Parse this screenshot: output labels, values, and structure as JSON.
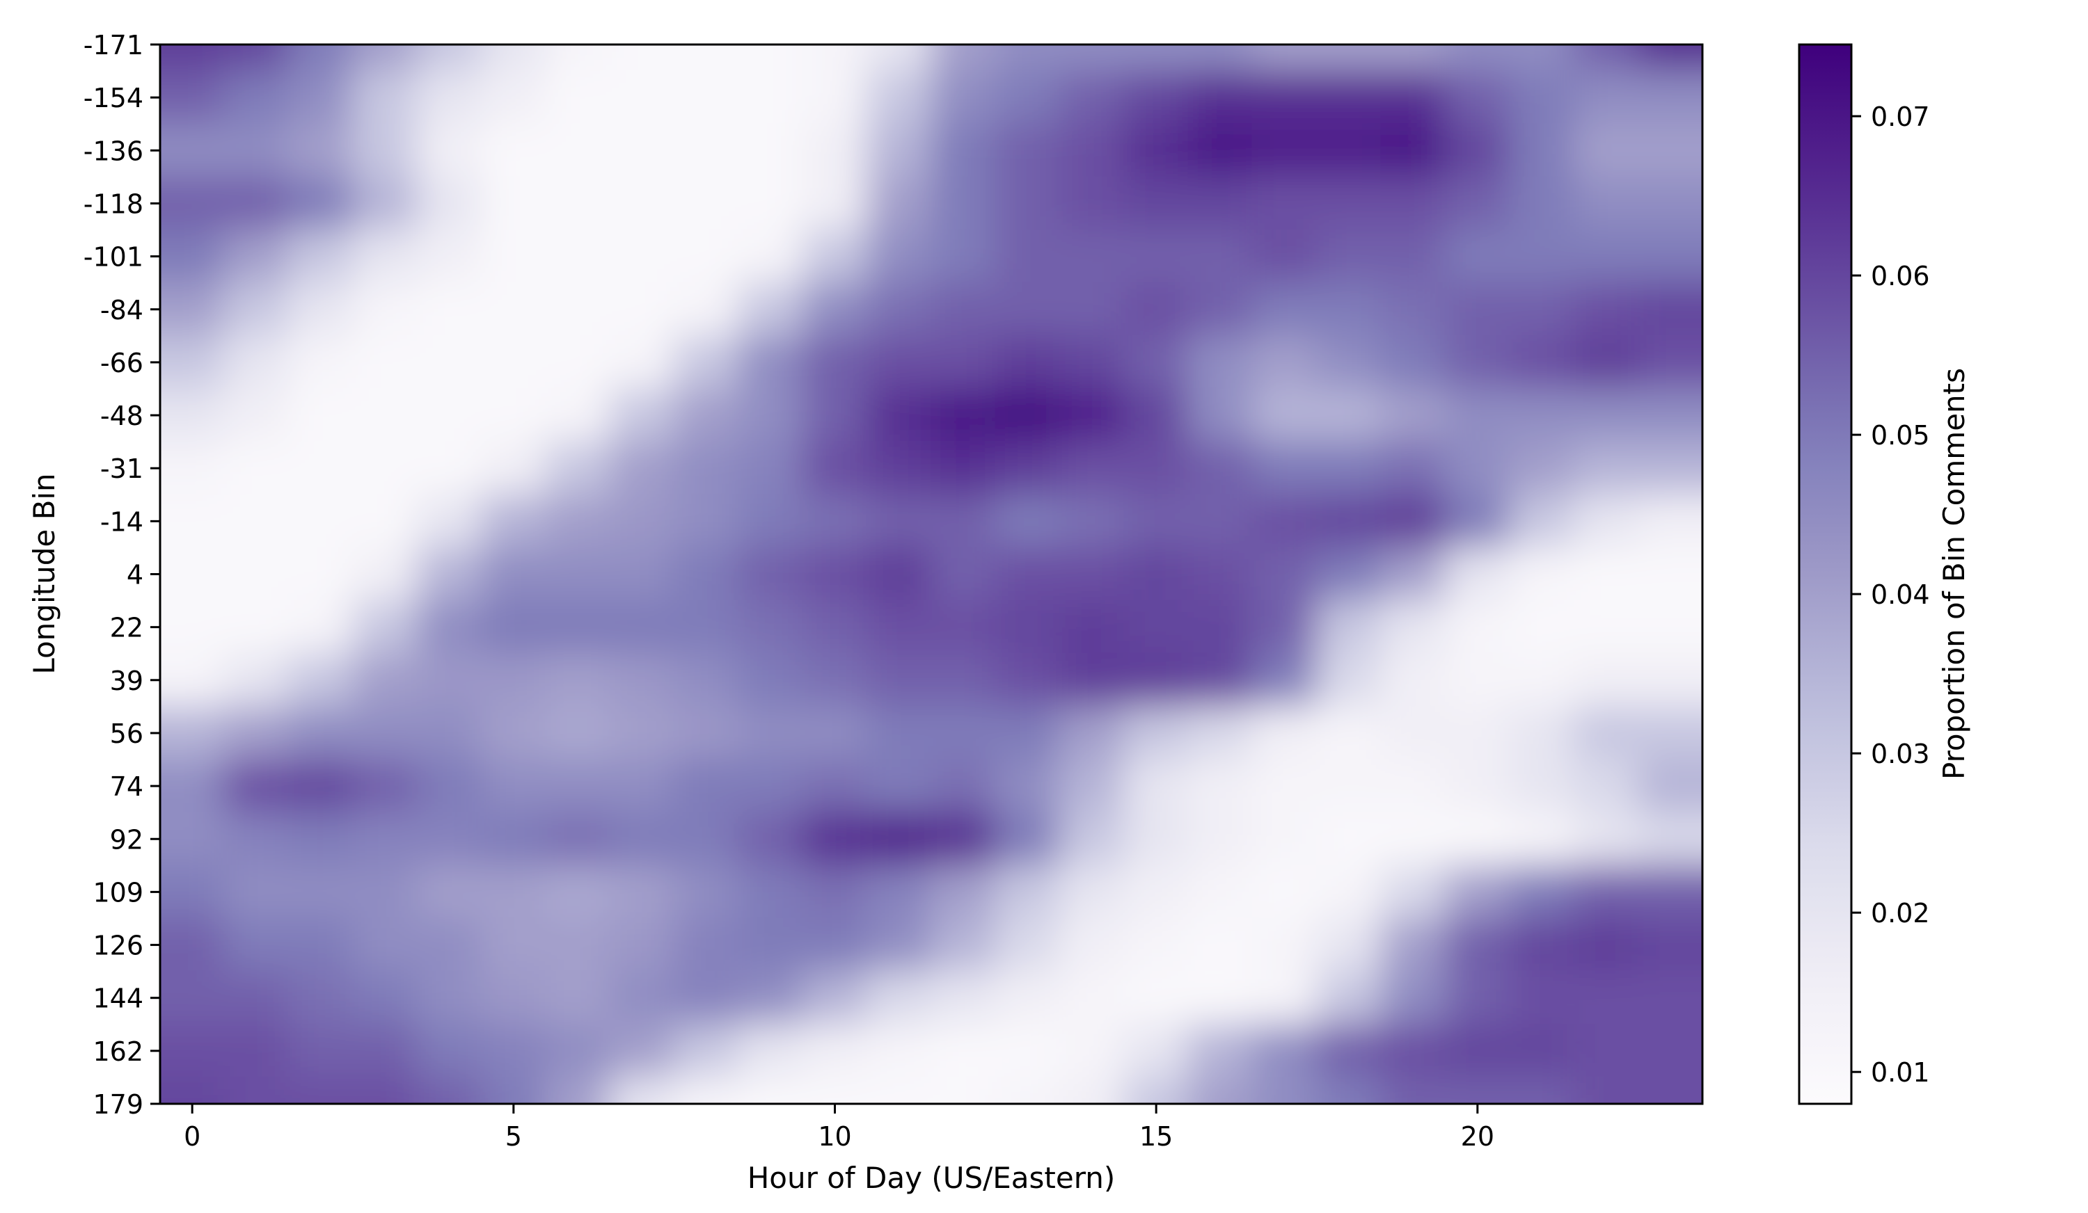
{
  "chart_data": {
    "type": "heatmap",
    "title": "",
    "xlabel": "Hour of Day (US/Eastern)",
    "ylabel": "Longitude Bin",
    "x_ticks": [
      0,
      5,
      10,
      15,
      20
    ],
    "xlim": [
      -0.5,
      23.5
    ],
    "y_categories": [
      "-171",
      "-154",
      "-136",
      "-118",
      "-101",
      "-84",
      "-66",
      "-48",
      "-31",
      "-14",
      "4",
      "22",
      "39",
      "56",
      "74",
      "92",
      "109",
      "126",
      "144",
      "162",
      "179"
    ],
    "colormap": "Purples",
    "colorbar": {
      "label": "Proportion of Bin Comments",
      "range": [
        0.008,
        0.0745
      ],
      "ticks": [
        "0.01",
        "0.02",
        "0.03",
        "0.04",
        "0.05",
        "0.06",
        "0.07"
      ],
      "color_low": "#fcfbfd",
      "color_high": "#3f007d"
    },
    "values": [
      [
        0.062,
        0.06,
        0.05,
        0.04,
        0.03,
        0.02,
        0.012,
        0.01,
        0.01,
        0.01,
        0.012,
        0.02,
        0.04,
        0.045,
        0.045,
        0.045,
        0.045,
        0.04,
        0.04,
        0.04,
        0.045,
        0.045,
        0.055,
        0.065
      ],
      [
        0.055,
        0.05,
        0.045,
        0.03,
        0.02,
        0.015,
        0.01,
        0.01,
        0.01,
        0.01,
        0.012,
        0.03,
        0.045,
        0.05,
        0.055,
        0.06,
        0.065,
        0.065,
        0.065,
        0.065,
        0.055,
        0.05,
        0.045,
        0.045
      ],
      [
        0.045,
        0.045,
        0.04,
        0.03,
        0.015,
        0.01,
        0.01,
        0.01,
        0.01,
        0.01,
        0.015,
        0.035,
        0.05,
        0.055,
        0.058,
        0.065,
        0.07,
        0.068,
        0.068,
        0.07,
        0.06,
        0.05,
        0.04,
        0.04
      ],
      [
        0.055,
        0.055,
        0.05,
        0.035,
        0.02,
        0.01,
        0.01,
        0.01,
        0.01,
        0.01,
        0.015,
        0.04,
        0.05,
        0.055,
        0.058,
        0.06,
        0.06,
        0.058,
        0.058,
        0.058,
        0.055,
        0.05,
        0.045,
        0.045
      ],
      [
        0.05,
        0.04,
        0.03,
        0.02,
        0.015,
        0.01,
        0.01,
        0.01,
        0.01,
        0.012,
        0.03,
        0.045,
        0.05,
        0.055,
        0.055,
        0.055,
        0.055,
        0.058,
        0.055,
        0.055,
        0.05,
        0.05,
        0.05,
        0.05
      ],
      [
        0.04,
        0.03,
        0.02,
        0.012,
        0.01,
        0.01,
        0.01,
        0.01,
        0.012,
        0.03,
        0.045,
        0.052,
        0.055,
        0.055,
        0.055,
        0.058,
        0.055,
        0.05,
        0.05,
        0.052,
        0.055,
        0.055,
        0.058,
        0.06
      ],
      [
        0.03,
        0.02,
        0.012,
        0.01,
        0.01,
        0.01,
        0.01,
        0.012,
        0.03,
        0.045,
        0.055,
        0.058,
        0.058,
        0.062,
        0.06,
        0.055,
        0.045,
        0.04,
        0.045,
        0.05,
        0.055,
        0.058,
        0.062,
        0.058
      ],
      [
        0.02,
        0.015,
        0.01,
        0.01,
        0.01,
        0.01,
        0.012,
        0.03,
        0.04,
        0.045,
        0.055,
        0.065,
        0.07,
        0.072,
        0.068,
        0.06,
        0.045,
        0.035,
        0.035,
        0.04,
        0.045,
        0.045,
        0.045,
        0.045
      ],
      [
        0.012,
        0.01,
        0.01,
        0.01,
        0.01,
        0.015,
        0.03,
        0.04,
        0.045,
        0.048,
        0.058,
        0.062,
        0.065,
        0.062,
        0.058,
        0.058,
        0.055,
        0.05,
        0.05,
        0.052,
        0.045,
        0.04,
        0.035,
        0.035
      ],
      [
        0.01,
        0.01,
        0.01,
        0.01,
        0.02,
        0.035,
        0.04,
        0.042,
        0.045,
        0.05,
        0.052,
        0.055,
        0.055,
        0.05,
        0.052,
        0.055,
        0.055,
        0.058,
        0.06,
        0.062,
        0.05,
        0.03,
        0.02,
        0.015
      ],
      [
        0.01,
        0.01,
        0.01,
        0.015,
        0.035,
        0.045,
        0.045,
        0.045,
        0.05,
        0.055,
        0.058,
        0.062,
        0.055,
        0.058,
        0.058,
        0.06,
        0.058,
        0.055,
        0.05,
        0.04,
        0.02,
        0.012,
        0.01,
        0.01
      ],
      [
        0.01,
        0.01,
        0.012,
        0.03,
        0.045,
        0.05,
        0.05,
        0.05,
        0.05,
        0.052,
        0.055,
        0.058,
        0.058,
        0.06,
        0.062,
        0.06,
        0.06,
        0.055,
        0.03,
        0.02,
        0.012,
        0.01,
        0.01,
        0.01
      ],
      [
        0.012,
        0.02,
        0.03,
        0.04,
        0.042,
        0.042,
        0.04,
        0.042,
        0.045,
        0.05,
        0.052,
        0.055,
        0.055,
        0.058,
        0.062,
        0.062,
        0.06,
        0.05,
        0.025,
        0.015,
        0.012,
        0.012,
        0.015,
        0.015
      ],
      [
        0.035,
        0.04,
        0.045,
        0.045,
        0.045,
        0.04,
        0.038,
        0.04,
        0.042,
        0.045,
        0.045,
        0.05,
        0.05,
        0.05,
        0.04,
        0.03,
        0.025,
        0.015,
        0.012,
        0.015,
        0.015,
        0.02,
        0.03,
        0.03
      ],
      [
        0.045,
        0.058,
        0.06,
        0.055,
        0.05,
        0.045,
        0.045,
        0.045,
        0.05,
        0.05,
        0.052,
        0.05,
        0.052,
        0.045,
        0.035,
        0.02,
        0.015,
        0.012,
        0.012,
        0.012,
        0.015,
        0.02,
        0.025,
        0.035
      ],
      [
        0.045,
        0.048,
        0.05,
        0.048,
        0.048,
        0.05,
        0.052,
        0.05,
        0.05,
        0.055,
        0.065,
        0.068,
        0.065,
        0.05,
        0.03,
        0.02,
        0.015,
        0.012,
        0.01,
        0.01,
        0.01,
        0.012,
        0.02,
        0.025
      ],
      [
        0.05,
        0.045,
        0.045,
        0.045,
        0.04,
        0.04,
        0.038,
        0.04,
        0.045,
        0.05,
        0.052,
        0.048,
        0.04,
        0.03,
        0.02,
        0.015,
        0.012,
        0.01,
        0.012,
        0.025,
        0.04,
        0.05,
        0.055,
        0.055
      ],
      [
        0.055,
        0.05,
        0.05,
        0.045,
        0.045,
        0.04,
        0.04,
        0.042,
        0.048,
        0.05,
        0.05,
        0.045,
        0.035,
        0.025,
        0.015,
        0.012,
        0.01,
        0.012,
        0.02,
        0.04,
        0.055,
        0.06,
        0.062,
        0.06
      ],
      [
        0.055,
        0.055,
        0.052,
        0.05,
        0.045,
        0.042,
        0.04,
        0.045,
        0.048,
        0.045,
        0.035,
        0.025,
        0.02,
        0.015,
        0.012,
        0.01,
        0.01,
        0.012,
        0.03,
        0.045,
        0.055,
        0.058,
        0.058,
        0.058
      ],
      [
        0.058,
        0.058,
        0.055,
        0.055,
        0.05,
        0.048,
        0.045,
        0.04,
        0.03,
        0.02,
        0.015,
        0.012,
        0.01,
        0.01,
        0.012,
        0.02,
        0.035,
        0.045,
        0.055,
        0.058,
        0.06,
        0.06,
        0.058,
        0.058
      ],
      [
        0.06,
        0.058,
        0.058,
        0.058,
        0.055,
        0.05,
        0.04,
        0.02,
        0.012,
        0.01,
        0.01,
        0.01,
        0.01,
        0.012,
        0.015,
        0.03,
        0.04,
        0.045,
        0.05,
        0.055,
        0.055,
        0.055,
        0.058,
        0.058
      ]
    ]
  }
}
